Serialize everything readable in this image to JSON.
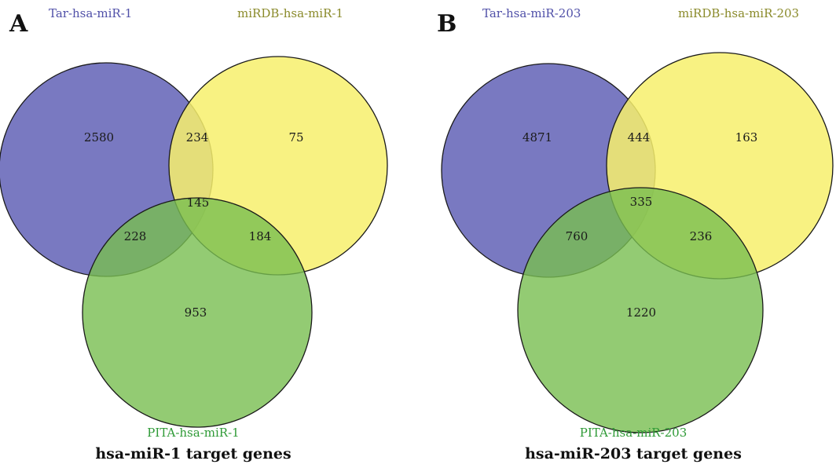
{
  "colors": {
    "set_a": "#6262b6",
    "set_b": "#f7f06c",
    "set_c": "#78be50",
    "label_a": "#5050a8",
    "label_b": "#8a8a2a",
    "label_c": "#2e9a36"
  },
  "panels": [
    {
      "letter": "A",
      "labels": {
        "a": "Tar-hsa-miR-1",
        "b": "miRDB-hsa-miR-1",
        "c": "PITA-hsa-miR-1"
      },
      "title": "hsa-miR-1 target genes",
      "counts": {
        "a_only": "2580",
        "ab": "234",
        "b_only": "75",
        "abc": "145",
        "ac": "228",
        "bc": "184",
        "c_only": "953"
      }
    },
    {
      "letter": "B",
      "labels": {
        "a": "Tar-hsa-miR-203",
        "b": "miRDB-hsa-miR-203",
        "c": "PITA-hsa-miR-203"
      },
      "title": "hsa-miR-203 target genes",
      "counts": {
        "a_only": "4871",
        "ab": "444",
        "b_only": "163",
        "abc": "335",
        "ac": "760",
        "bc": "236",
        "c_only": "1220"
      }
    }
  ]
}
